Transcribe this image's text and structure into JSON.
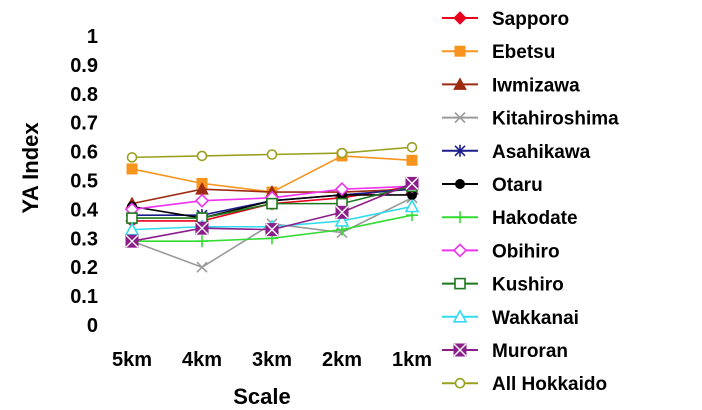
{
  "chart_data": {
    "type": "line",
    "xlabel": "Scale",
    "ylabel": "YA Index",
    "categories": [
      "5km",
      "4km",
      "3km",
      "2km",
      "1km"
    ],
    "ylim": [
      0,
      1
    ],
    "yticks": [
      "0",
      "0.1",
      "0.2",
      "0.3",
      "0.4",
      "0.5",
      "0.6",
      "0.7",
      "0.8",
      "0.9",
      "1"
    ],
    "grid": false,
    "legend": "right",
    "series": [
      {
        "name": "Sapporo",
        "color": "#e8001c",
        "marker": "diamond",
        "values": [
          0.36,
          0.36,
          0.42,
          0.44,
          0.48
        ]
      },
      {
        "name": "Ebetsu",
        "color": "#f7941d",
        "marker": "square",
        "values": [
          0.54,
          0.49,
          0.46,
          0.585,
          0.57
        ]
      },
      {
        "name": "Iwmizawa",
        "color": "#9e2a12",
        "marker": "triangle",
        "values": [
          0.42,
          0.47,
          0.46,
          0.46,
          0.47
        ]
      },
      {
        "name": "Kitahiroshima",
        "color": "#9a9a9a",
        "marker": "x",
        "values": [
          0.29,
          0.2,
          0.35,
          0.32,
          0.44
        ]
      },
      {
        "name": "Asahikawa",
        "color": "#1c1c8c",
        "marker": "star",
        "values": [
          0.38,
          0.38,
          0.43,
          0.45,
          0.47
        ]
      },
      {
        "name": "Otaru",
        "color": "#000000",
        "marker": "circle",
        "values": [
          0.41,
          0.37,
          0.43,
          0.45,
          0.45
        ]
      },
      {
        "name": "Hakodate",
        "color": "#32dc32",
        "marker": "plus",
        "values": [
          0.29,
          0.29,
          0.3,
          0.33,
          0.38
        ]
      },
      {
        "name": "Obihiro",
        "color": "#f032f0",
        "marker": "diamond-open",
        "values": [
          0.4,
          0.43,
          0.44,
          0.47,
          0.48
        ]
      },
      {
        "name": "Kushiro",
        "color": "#1e781e",
        "marker": "square-open",
        "values": [
          0.37,
          0.37,
          0.42,
          0.42,
          0.48
        ]
      },
      {
        "name": "Wakkanai",
        "color": "#32dcf0",
        "marker": "triangle-open",
        "values": [
          0.33,
          0.34,
          0.34,
          0.36,
          0.41
        ]
      },
      {
        "name": "Muroran",
        "color": "#8c1e8c",
        "marker": "square-x",
        "values": [
          0.29,
          0.335,
          0.33,
          0.39,
          0.49
        ]
      },
      {
        "name": "All Hokkaido",
        "color": "#9aa01e",
        "marker": "circle-open",
        "values": [
          0.58,
          0.585,
          0.59,
          0.595,
          0.615
        ]
      }
    ]
  }
}
